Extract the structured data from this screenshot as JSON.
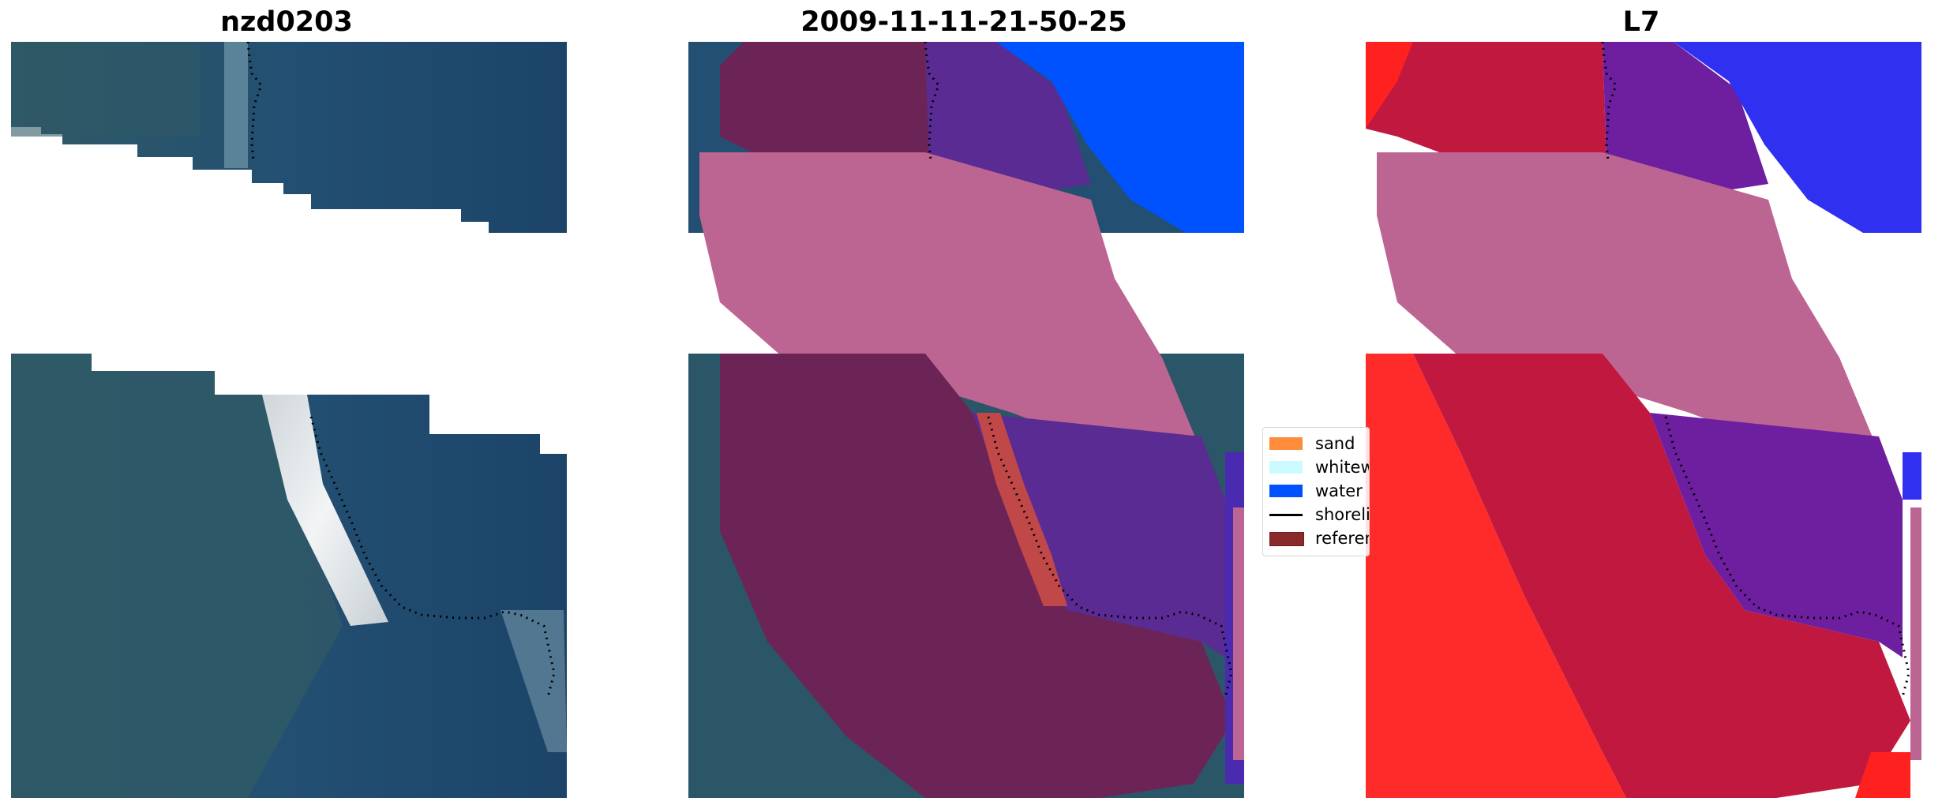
{
  "panels": [
    {
      "id": "image",
      "title": "nzd0203"
    },
    {
      "id": "classification",
      "title": "2009-11-11-21-50-25"
    },
    {
      "id": "index",
      "title": "L7"
    }
  ],
  "legend": {
    "items": [
      {
        "label": "sand",
        "color": "#ff8c3b",
        "kind": "patch"
      },
      {
        "label": "whitewater",
        "color": "#ccfbff",
        "kind": "patch"
      },
      {
        "label": "water",
        "color": "#0052ff",
        "kind": "patch"
      },
      {
        "label": "shoreline",
        "color": "#000000",
        "kind": "line"
      },
      {
        "label": "reference shoreline buffer",
        "color": "#8b2a2a",
        "kind": "patch"
      }
    ]
  },
  "colors": {
    "ocean": "#1e4a6e",
    "land": "#2f5966",
    "water_class": "#0052ff",
    "buffer": "#bd6592",
    "index_low": "#ff2a2a",
    "index_high": "#2d2df0"
  }
}
